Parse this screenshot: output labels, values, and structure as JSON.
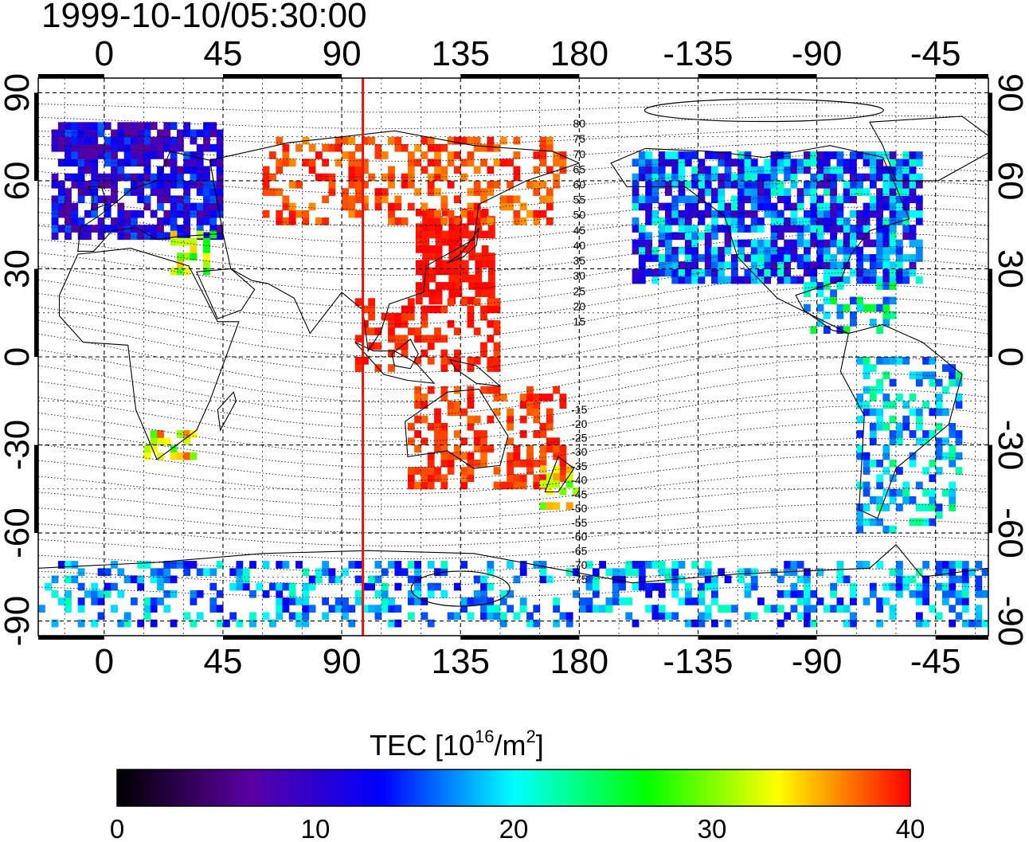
{
  "title": "1999-10-10/05:30:00",
  "map": {
    "projection": "equirectangular",
    "lon_range": [
      -25,
      335
    ],
    "lat_range": [
      -95,
      95
    ],
    "top_lon_ticks": [
      "0",
      "45",
      "90",
      "135",
      "180",
      "-135",
      "-90",
      "-45"
    ],
    "bottom_lon_ticks": [
      "0",
      "45",
      "90",
      "135",
      "180",
      "-135",
      "-90",
      "-45"
    ],
    "left_lat_ticks": [
      "90",
      "60",
      "30",
      "0",
      "-30",
      "-60",
      "-90"
    ],
    "right_lat_ticks": [
      "90",
      "60",
      "30",
      "0",
      "-30",
      "-60",
      "-90"
    ],
    "terminator_longitude": 98,
    "terminator_color": "#e8140a",
    "contour_labels": [
      "80",
      "75",
      "70",
      "65",
      "60",
      "55",
      "50",
      "45",
      "40",
      "35",
      "30",
      "25",
      "20",
      "15",
      "-15",
      "-20",
      "-25",
      "-30",
      "-35",
      "-40",
      "-45",
      "-50",
      "-55",
      "-60",
      "-65",
      "-70",
      "-75"
    ]
  },
  "colorbar": {
    "title_prefix": "TEC  [10",
    "title_sup1": "16",
    "title_mid": "/m",
    "title_sup2": "2",
    "title_suffix": "]",
    "min": 0,
    "max": 40,
    "tick_labels": [
      "0",
      "10",
      "20",
      "30",
      "40"
    ],
    "colors": [
      "#000000",
      "#5a00a0",
      "#0000ff",
      "#00ffff",
      "#00ff00",
      "#ffff00",
      "#ff0000"
    ]
  },
  "tec_regions": [
    {
      "name": "europe",
      "lon": [
        -20,
        45
      ],
      "lat": [
        40,
        80
      ],
      "tec": [
        6,
        16
      ]
    },
    {
      "name": "mediterranean",
      "lon": [
        25,
        42
      ],
      "lat": [
        28,
        42
      ],
      "tec": [
        26,
        36
      ]
    },
    {
      "name": "north-america",
      "lon": [
        200,
        310
      ],
      "lat": [
        25,
        70
      ],
      "tec": [
        8,
        22
      ]
    },
    {
      "name": "central-america",
      "lon": [
        265,
        300
      ],
      "lat": [
        8,
        25
      ],
      "tec": [
        14,
        26
      ]
    },
    {
      "name": "east-asia",
      "lon": [
        118,
        148
      ],
      "lat": [
        18,
        50
      ],
      "tec": [
        39,
        40
      ]
    },
    {
      "name": "siberia",
      "lon": [
        60,
        175
      ],
      "lat": [
        45,
        75
      ],
      "tec": [
        36,
        40
      ]
    },
    {
      "name": "southeast-asia",
      "lon": [
        95,
        150
      ],
      "lat": [
        -5,
        20
      ],
      "tec": [
        38,
        40
      ]
    },
    {
      "name": "australia",
      "lon": [
        115,
        175
      ],
      "lat": [
        -45,
        -12
      ],
      "tec": [
        37,
        40
      ]
    },
    {
      "name": "new-zealand",
      "lon": [
        165,
        180
      ],
      "lat": [
        -52,
        -38
      ],
      "tec": [
        28,
        36
      ]
    },
    {
      "name": "south-america",
      "lon": [
        285,
        325
      ],
      "lat": [
        -60,
        0
      ],
      "tec": [
        14,
        24
      ]
    },
    {
      "name": "southern-africa",
      "lon": [
        15,
        35
      ],
      "lat": [
        -35,
        -25
      ],
      "tec": [
        28,
        38
      ]
    },
    {
      "name": "antarctic-coast",
      "lon": [
        -25,
        335
      ],
      "lat": [
        -92,
        -70
      ],
      "tec": [
        12,
        22
      ]
    }
  ]
}
